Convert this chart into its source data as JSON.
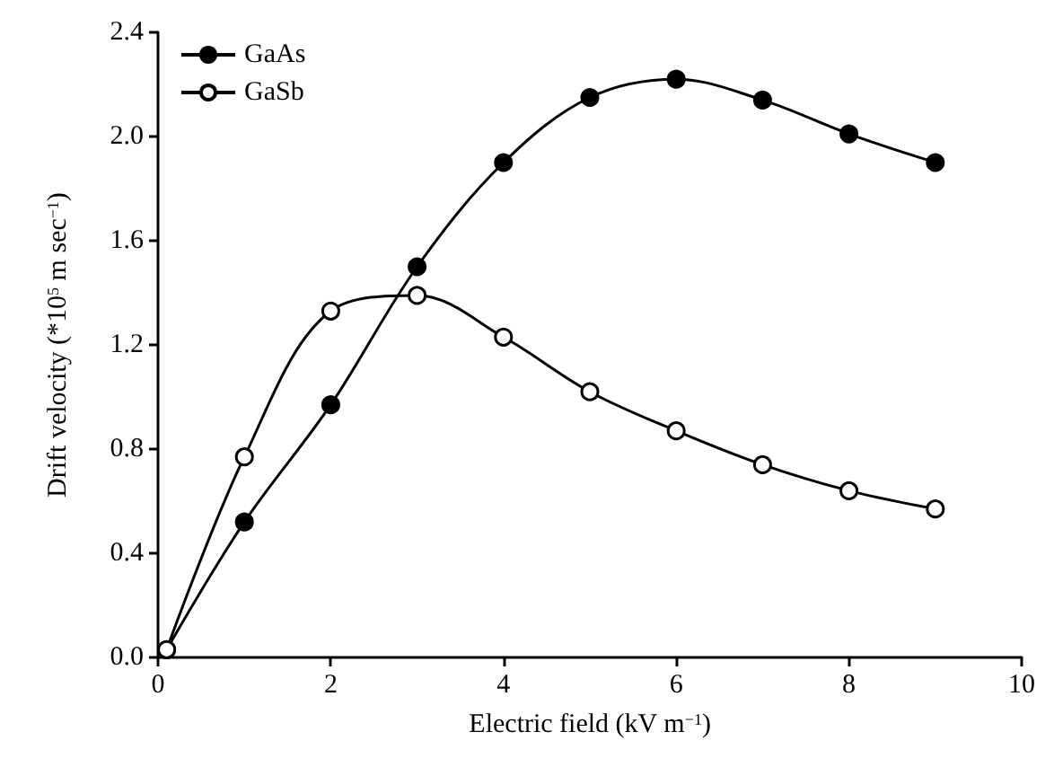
{
  "chart_data": {
    "type": "line",
    "xlabel": "Electric field (kV m$^{−1}$)",
    "ylabel": "Drift velocity (*10$^{5}$ m sec$^{−1}$)",
    "x": [
      0.1,
      1,
      2,
      3,
      4,
      5,
      6,
      7,
      8,
      9
    ],
    "series": [
      {
        "name": "GaAs",
        "color": "#000000",
        "values": [
          0.03,
          0.52,
          0.97,
          1.5,
          1.9,
          2.15,
          2.22,
          2.14,
          2.01,
          1.9
        ]
      },
      {
        "name": "GaSb",
        "color": "#000000",
        "colors": [
          "#ffffff",
          "#ffffff",
          "#ffffff",
          "#ffffff",
          "#ffffff",
          "#ffffff",
          "#ffffff",
          "#ffffff",
          "#ffffff",
          "#ffffff"
        ],
        "values": [
          0.03,
          0.77,
          1.33,
          1.39,
          1.23,
          1.02,
          0.87,
          0.74,
          0.64,
          0.57
        ]
      }
    ],
    "xlim": [
      0,
      10
    ],
    "xticks": [
      0,
      2,
      4,
      6,
      8,
      10
    ],
    "ylim": [
      0,
      2.4
    ],
    "yticks": [
      {
        "value": 0,
        "label": "0.0"
      },
      0.4,
      0.8,
      1.2,
      1.6,
      {
        "value": 2,
        "label": "2.0"
      },
      2.4
    ],
    "grid": false,
    "legend": "top left",
    "marker": "circle",
    "line_style": "solid"
  }
}
